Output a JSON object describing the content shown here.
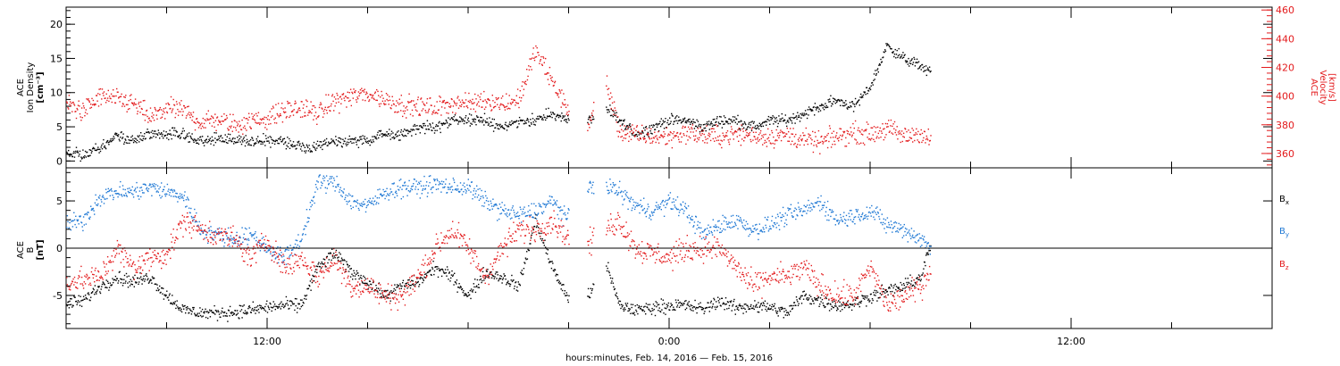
{
  "colors": {
    "black": "#000000",
    "red": "#e31a1c",
    "blue": "#1f78d4"
  },
  "x_title": "hours:minutes, Feb. 14, 2016 — Feb. 15, 2016",
  "chart_data": [
    {
      "type": "scatter",
      "panel": "plasma",
      "x": {
        "label": "hours:minutes, Feb. 14, 2016 — Feb. 15, 2016",
        "range_hours": [
          6,
          42
        ],
        "ticks": [
          "12:00",
          "0:00",
          "12:00"
        ],
        "tick_hours": [
          12,
          24,
          36
        ]
      },
      "y_left": {
        "label_lines": [
          "ACE",
          "Ion Density",
          "[cm⁻³]"
        ],
        "range": [
          -1,
          22.5
        ],
        "ticks": [
          0,
          5,
          10,
          15,
          20
        ]
      },
      "y_right": {
        "label_lines": [
          "ACE",
          "Velocity",
          "[km/s]"
        ],
        "range": [
          350,
          462
        ],
        "ticks": [
          360,
          380,
          400,
          420,
          440,
          460
        ],
        "color": "red"
      },
      "data_gap_hours": [
        [
          21.0,
          21.55
        ],
        [
          21.75,
          22.1
        ]
      ],
      "series": [
        {
          "color": "black",
          "axis": "left",
          "x": [
            6,
            6.5,
            7,
            7.5,
            8,
            8.5,
            9,
            9.5,
            10,
            10.5,
            11,
            11.5,
            12,
            12.5,
            13,
            13.5,
            14,
            14.5,
            15,
            15.5,
            16,
            16.5,
            17,
            17.5,
            18,
            18.5,
            19,
            19.5,
            20,
            20.5,
            21,
            21.6,
            22,
            22.5,
            23,
            23.5,
            24,
            24.5,
            25,
            25.5,
            26,
            26.5,
            27,
            27.5,
            28,
            28.5,
            29,
            29.5,
            30,
            30.5,
            31,
            31.5,
            31.8
          ],
          "y": [
            1,
            1,
            2,
            4,
            3,
            4,
            4,
            4,
            3,
            3.5,
            3,
            3,
            3,
            3,
            2,
            2,
            3,
            3,
            3,
            4,
            4,
            5,
            5,
            6,
            6,
            6,
            5,
            6,
            6,
            7,
            6,
            6,
            8,
            6,
            4,
            5,
            6,
            6,
            5,
            6,
            6,
            5,
            6,
            6,
            7,
            8,
            9,
            8,
            11,
            17,
            15,
            14,
            13
          ]
        },
        {
          "color": "red",
          "axis": "right",
          "x": [
            6,
            6.5,
            7,
            7.5,
            8,
            8.5,
            9,
            9.5,
            10,
            10.5,
            11,
            11.5,
            12,
            12.5,
            13,
            13.5,
            14,
            14.5,
            15,
            15.5,
            16,
            16.5,
            17,
            17.5,
            18,
            18.5,
            19,
            19.5,
            20,
            20.5,
            21,
            21.6,
            22,
            22.5,
            23,
            23.5,
            24,
            24.5,
            25,
            25.5,
            26,
            26.5,
            27,
            27.5,
            28,
            28.5,
            29,
            29.5,
            30,
            30.5,
            31,
            31.5,
            31.8
          ],
          "y": [
            395,
            390,
            400,
            398,
            395,
            385,
            392,
            390,
            382,
            384,
            380,
            383,
            385,
            390,
            392,
            388,
            397,
            400,
            402,
            398,
            394,
            393,
            392,
            396,
            395,
            398,
            395,
            398,
            432,
            410,
            390,
            378,
            420,
            376,
            373,
            372,
            372,
            375,
            373,
            372,
            374,
            373,
            372,
            373,
            370,
            368,
            372,
            375,
            374,
            378,
            372,
            375,
            368
          ]
        }
      ]
    },
    {
      "type": "scatter",
      "panel": "magnetic-field",
      "x": {
        "label": "hours:minutes, Feb. 14, 2016 — Feb. 15, 2016",
        "range_hours": [
          6,
          42
        ],
        "ticks": [
          "12:00",
          "0:00",
          "12:00"
        ],
        "tick_hours": [
          12,
          24,
          36
        ]
      },
      "y_left": {
        "label_lines": [
          "ACE",
          "B",
          "[nT]"
        ],
        "range": [
          -8.5,
          8.5
        ],
        "ticks": [
          -5,
          0,
          5
        ]
      },
      "zero_line": true,
      "data_gap_hours": [
        [
          21.0,
          21.55
        ],
        [
          21.75,
          22.1
        ]
      ],
      "legend": {
        "position": "right",
        "entries": [
          {
            "text": "B",
            "sub": "x",
            "color": "black"
          },
          {
            "text": "B",
            "sub": "y",
            "color": "blue"
          },
          {
            "text": "B",
            "sub": "z",
            "color": "red"
          }
        ]
      },
      "series": [
        {
          "name": "Bx",
          "color": "black",
          "x": [
            6,
            6.5,
            7,
            7.5,
            8,
            8.5,
            9,
            9.5,
            10,
            10.5,
            11,
            11.5,
            12,
            12.5,
            13,
            13.5,
            14,
            14.5,
            15,
            15.5,
            16,
            16.5,
            17,
            17.5,
            18,
            18.5,
            19,
            19.5,
            20,
            20.5,
            21,
            21.6,
            22,
            22.5,
            23,
            23.5,
            24,
            24.5,
            25,
            25.5,
            26,
            26.5,
            27,
            27.5,
            28,
            28.5,
            29,
            29.5,
            30,
            30.5,
            31,
            31.5,
            31.8
          ],
          "y": [
            -5.8,
            -5.5,
            -4,
            -3,
            -3.5,
            -3,
            -5,
            -6.5,
            -6.8,
            -6.8,
            -6.7,
            -6.5,
            -6.2,
            -6,
            -6,
            -2,
            -0.5,
            -2.5,
            -3.5,
            -5,
            -4,
            -3.5,
            -2,
            -3,
            -5,
            -2.5,
            -3,
            -4,
            3,
            -2,
            -5.5,
            -5,
            -0.5,
            -6,
            -6.5,
            -6.2,
            -6,
            -6,
            -6.4,
            -5.5,
            -6.3,
            -6,
            -6.2,
            -6.8,
            -5,
            -5.5,
            -6,
            -5.8,
            -5,
            -4.5,
            -4,
            -3,
            0.5
          ]
        },
        {
          "name": "By",
          "color": "blue",
          "x": [
            6,
            6.5,
            7,
            7.5,
            8,
            8.5,
            9,
            9.5,
            10,
            10.5,
            11,
            11.5,
            12,
            12.5,
            13,
            13.5,
            14,
            14.5,
            15,
            15.5,
            16,
            16.5,
            17,
            17.5,
            18,
            18.5,
            19,
            19.5,
            20,
            20.5,
            21,
            21.6,
            22,
            22.5,
            23,
            23.5,
            24,
            24.5,
            25,
            25.5,
            26,
            26.5,
            27,
            27.5,
            28,
            28.5,
            29,
            29.5,
            30,
            30.5,
            31,
            31.5,
            31.8
          ],
          "y": [
            2.5,
            3,
            5.5,
            6,
            6,
            6.5,
            6,
            5.5,
            2,
            1.5,
            1,
            1.5,
            0,
            -1,
            1,
            7,
            7,
            5,
            4.5,
            6,
            6.5,
            6.5,
            6.8,
            6.5,
            6.5,
            5,
            4,
            3.5,
            4,
            5,
            3,
            6.5,
            7,
            6,
            4.5,
            4,
            5,
            4,
            1.5,
            2.5,
            3,
            2,
            2.5,
            3.5,
            4,
            5,
            3,
            3.5,
            4,
            2.5,
            2,
            1,
            0
          ]
        },
        {
          "name": "Bz",
          "color": "red",
          "x": [
            6,
            6.5,
            7,
            7.5,
            8,
            8.5,
            9,
            9.5,
            10,
            10.5,
            11,
            11.5,
            12,
            12.5,
            13,
            13.5,
            14,
            14.5,
            15,
            15.5,
            16,
            16.5,
            17,
            17.5,
            18,
            18.5,
            19,
            19.5,
            20,
            20.5,
            21,
            21.6,
            22,
            22.5,
            23,
            23.5,
            24,
            24.5,
            25,
            25.5,
            26,
            26.5,
            27,
            27.5,
            28,
            28.5,
            29,
            29.5,
            30,
            30.5,
            31,
            31.5,
            31.8
          ],
          "y": [
            -3.5,
            -3.3,
            -3,
            0,
            -2,
            -1,
            -0.5,
            3,
            2,
            1.5,
            1,
            -1,
            1,
            -2,
            -1,
            -3,
            -1,
            -4,
            -4,
            -5,
            -5,
            -3,
            0,
            2,
            0,
            -3,
            0,
            2,
            2,
            3,
            1,
            0.5,
            2,
            3,
            0,
            -0.5,
            -1,
            0,
            0,
            0,
            -2,
            -4,
            -3,
            -3,
            -2,
            -4,
            -5,
            -5,
            -2,
            -6,
            -5,
            -4,
            -2
          ]
        }
      ]
    }
  ]
}
